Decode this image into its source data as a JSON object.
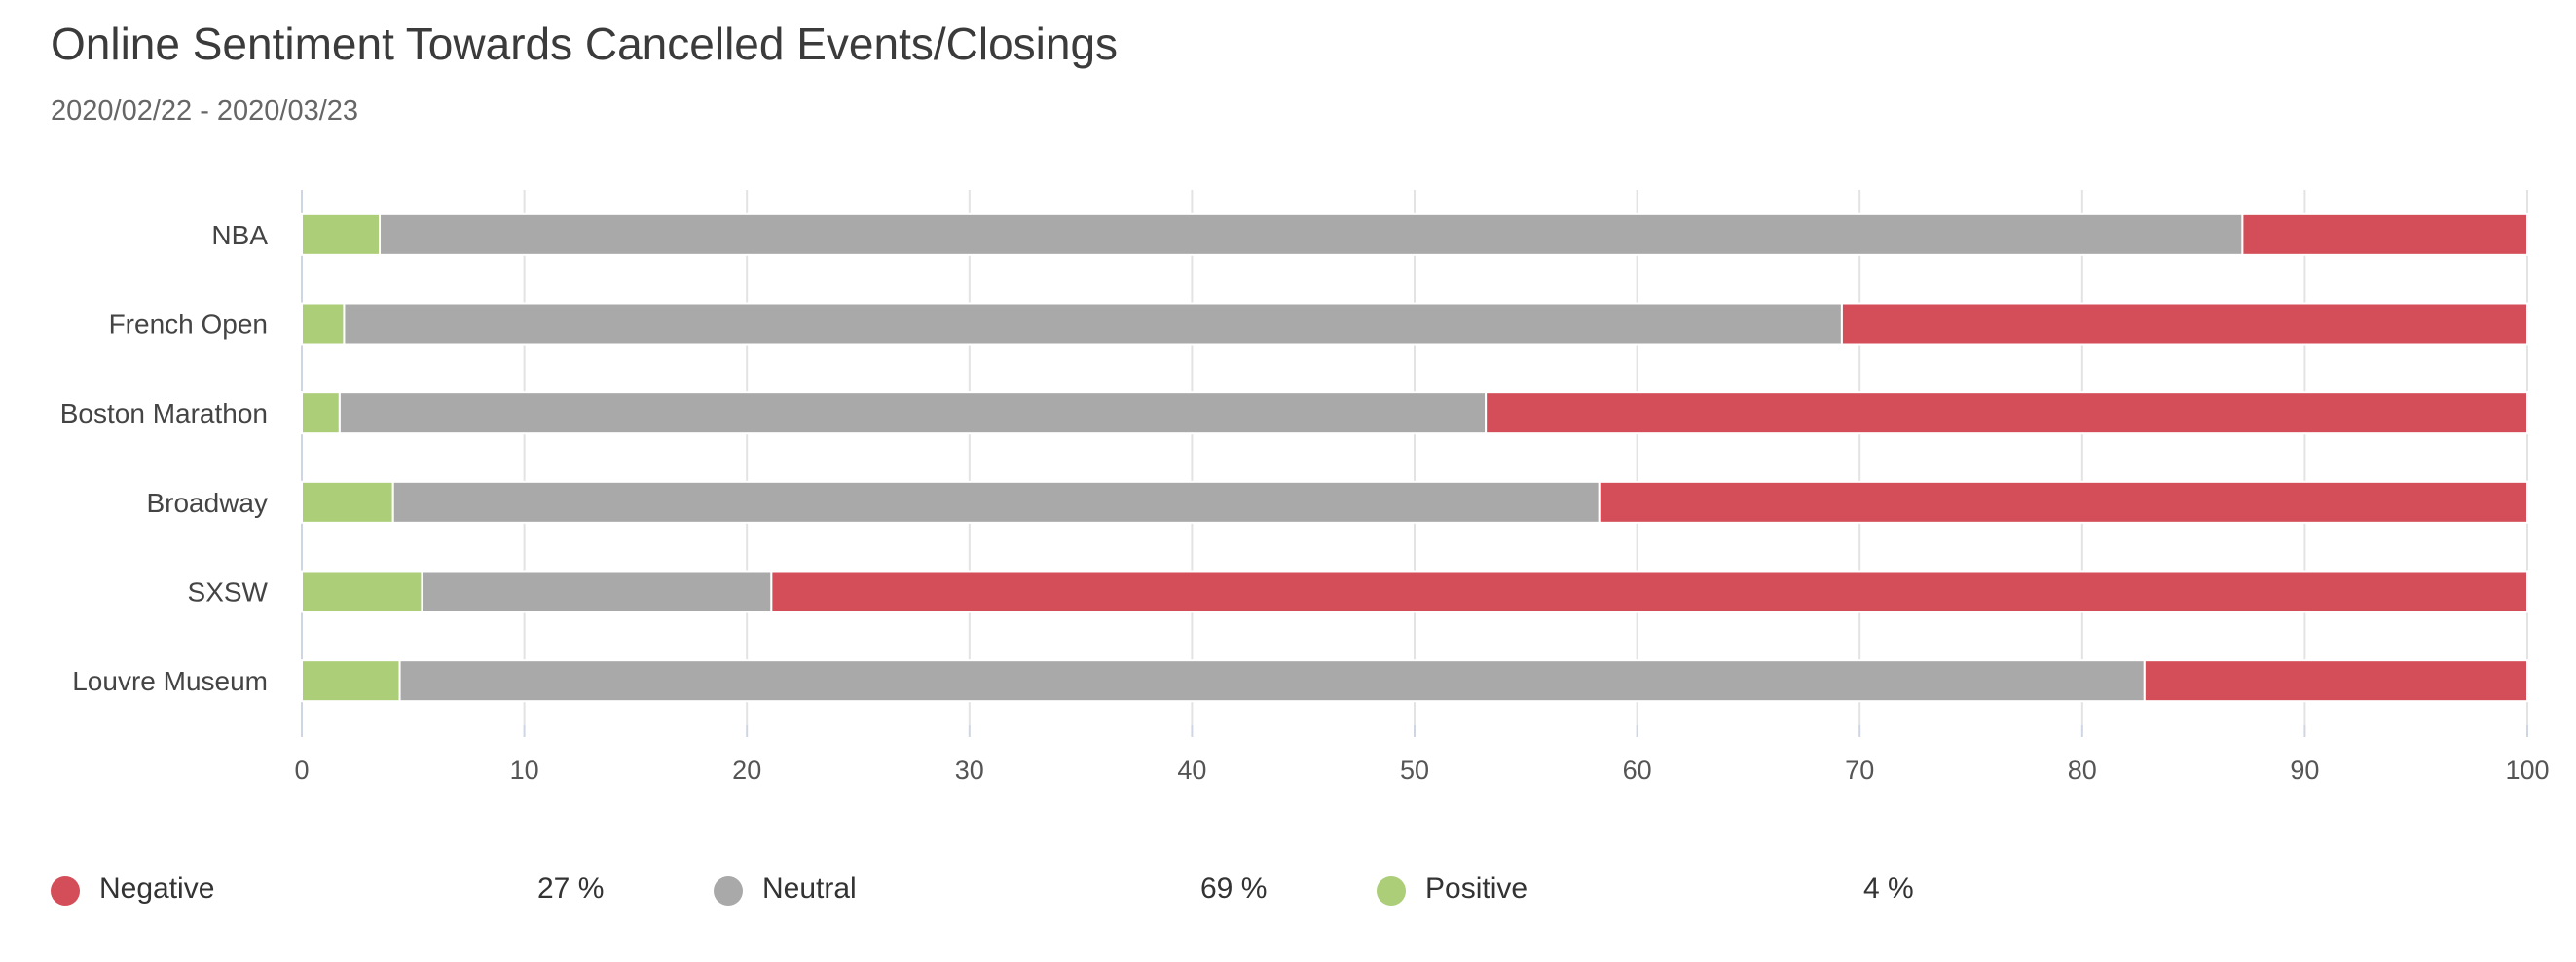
{
  "chart_data": {
    "type": "bar",
    "orientation": "horizontal",
    "stacked": true,
    "title": "Online Sentiment Towards Cancelled Events/Closings",
    "subtitle": "2020/02/22 - 2020/03/23",
    "categories": [
      "NBA",
      "French Open",
      "Boston Marathon",
      "Broadway",
      "SXSW",
      "Louvre Museum"
    ],
    "series": [
      {
        "name": "Positive",
        "color": "#acce78",
        "values": [
          3.5,
          1.9,
          1.7,
          4.1,
          5.4,
          4.4
        ]
      },
      {
        "name": "Neutral",
        "color": "#a9a9a9",
        "values": [
          83.7,
          67.3,
          51.5,
          54.2,
          15.7,
          78.4
        ]
      },
      {
        "name": "Negative",
        "color": "#d44e59",
        "values": [
          12.8,
          30.8,
          46.8,
          41.7,
          78.9,
          17.2
        ]
      }
    ],
    "xlim": [
      0,
      100
    ],
    "xticks": [
      "0",
      "10",
      "20",
      "30",
      "40",
      "50",
      "60",
      "70",
      "80",
      "90",
      "100"
    ],
    "xlabel": "",
    "ylabel": "",
    "grid": true,
    "legend_position": "bottom"
  },
  "legend": [
    {
      "name": "Negative",
      "value": "27 %",
      "color": "#d44e59"
    },
    {
      "name": "Neutral",
      "value": "69 %",
      "color": "#a9a9a9"
    },
    {
      "name": "Positive",
      "value": "4 %",
      "color": "#acce78"
    }
  ]
}
